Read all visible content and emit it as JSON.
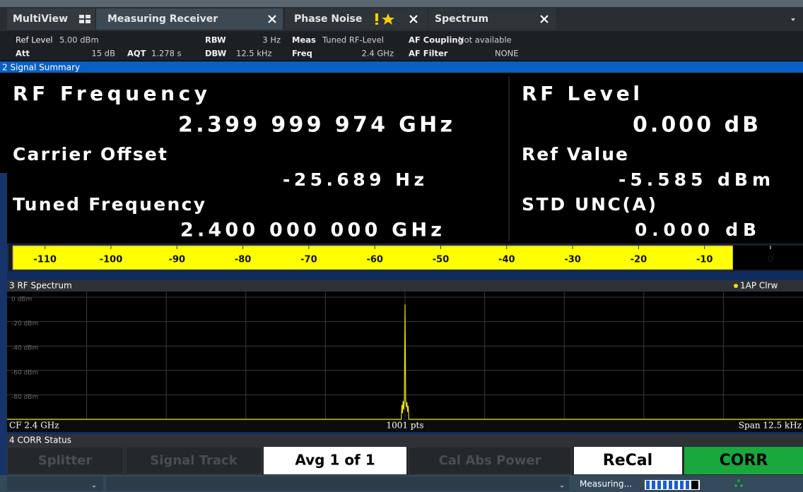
{
  "tabs": [
    "MultiView",
    "Measuring Receiver",
    "Phase Noise",
    "Spectrum"
  ],
  "settings": [
    {
      "label": "Ref Level",
      "value": "5.00 dBm"
    },
    {
      "label": "Att",
      "value": "15 dB"
    },
    {
      "label": "AQT",
      "value": "1.278 s"
    },
    {
      "label": "RBW",
      "value": "3 Hz"
    },
    {
      "label": "DBW",
      "value": "12.5 kHz"
    },
    {
      "label": "Meas",
      "value": "Tuned RF-Level"
    },
    {
      "label": "Freq",
      "value": "2.4 GHz"
    },
    {
      "label": "AF Coupling",
      "value": "Not available"
    },
    {
      "label": "AF Filter",
      "value": "NONE"
    }
  ],
  "signal_summary": {
    "title": "2 Signal Summary",
    "left": [
      {
        "label": "RF Frequency",
        "value": "2.399 999 974 GHz"
      },
      {
        "label": "Carrier Offset",
        "value": "-25.689 Hz"
      },
      {
        "label": "Tuned Frequency",
        "value": "2.400 000 000 GHz"
      }
    ],
    "right": [
      {
        "label": "RF Level",
        "value": "0.000 dB"
      },
      {
        "label": "Ref Value",
        "value": "-5.585 dBm"
      },
      {
        "label": "STD UNC(A)",
        "value": "0.000 dB"
      }
    ]
  },
  "level_bar": {
    "ticks": [
      -110,
      -100,
      -90,
      -80,
      -70,
      -60,
      -50,
      -40,
      -30,
      -20,
      -10,
      0
    ]
  },
  "spectrum": {
    "title": "3 RF Spectrum",
    "trace_label": "1AP Clrw",
    "color": "#e8e400",
    "ylim": [
      -100,
      0
    ],
    "yticks": [
      {
        "value": 0,
        "label": "0 dBm"
      },
      {
        "value": -20,
        "label": "-20 dBm"
      },
      {
        "value": -40,
        "label": "-40 dBm"
      },
      {
        "value": -60,
        "label": "-60 dBm"
      },
      {
        "value": -80,
        "label": "-80 dBm"
      }
    ],
    "xlim": [
      -6.25,
      6.25
    ],
    "trace": {
      "x": [
        -6.25,
        -0.06,
        -0.05,
        -0.04,
        -0.03,
        -0.02,
        -0.01,
        0,
        0.01,
        0.02,
        0.03,
        0.04,
        0.05,
        0.06,
        6.25
      ],
      "values": [
        -100,
        -100,
        -88,
        -95,
        -85,
        -92,
        -83,
        -6,
        -84,
        -90,
        -86,
        -94,
        -89,
        -100,
        -100
      ]
    },
    "footer": {
      "left": "CF 2.4 GHz",
      "center": "1001 pts",
      "right": "Span 12.5 kHz"
    }
  },
  "corr_status": {
    "title": "4 CORR Status",
    "buttons": [
      "Splitter",
      "Signal Track",
      "Avg 1 of 1",
      "Cal Abs Power",
      "ReCal",
      "CORR"
    ]
  },
  "status_bar": {
    "message": "Measuring..."
  }
}
